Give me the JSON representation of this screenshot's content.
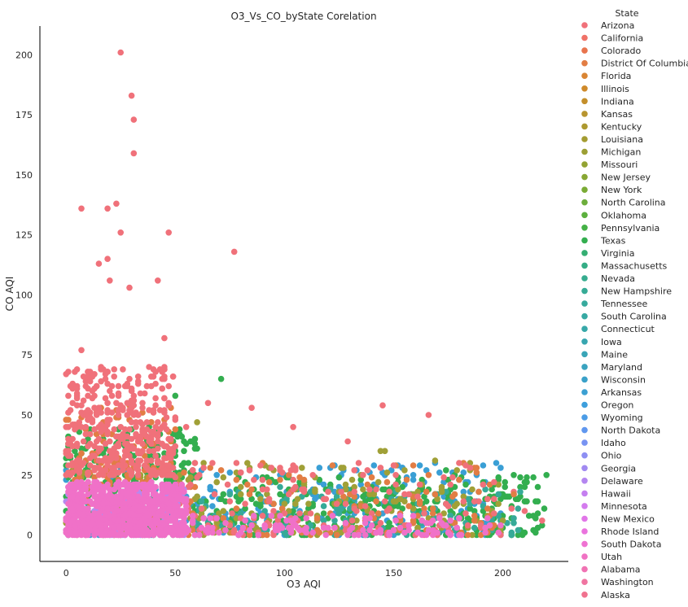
{
  "chart_data": {
    "type": "scatter",
    "title": "O3_Vs_CO_byState Corelation",
    "xlabel": "O3 AQI",
    "ylabel": "CO AQI",
    "xlim": [
      -12,
      230
    ],
    "ylim": [
      -11,
      212
    ],
    "xticks": [
      0,
      50,
      100,
      150,
      200
    ],
    "yticks": [
      0,
      25,
      50,
      75,
      100,
      125,
      150,
      175,
      200
    ],
    "grid": false,
    "legend": {
      "title": "State",
      "placement": "right-outside",
      "entries": [
        "Arizona",
        "California",
        "Colorado",
        "District Of Columbia",
        "Florida",
        "Illinois",
        "Indiana",
        "Kansas",
        "Kentucky",
        "Louisiana",
        "Michigan",
        "Missouri",
        "New Jersey",
        "New York",
        "North Carolina",
        "Oklahoma",
        "Pennsylvania",
        "Texas",
        "Virginia",
        "Massachusetts",
        "Nevada",
        "New Hampshire",
        "Tennessee",
        "South Carolina",
        "Connecticut",
        "Iowa",
        "Maine",
        "Maryland",
        "Wisconsin",
        "Arkansas",
        "Oregon",
        "Wyoming",
        "North Dakota",
        "Idaho",
        "Ohio",
        "Georgia",
        "Delaware",
        "Hawaii",
        "Minnesota",
        "New Mexico",
        "Rhode Island",
        "South Dakota",
        "Utah",
        "Alabama",
        "Washington",
        "Alaska"
      ]
    },
    "colors": {
      "red": "#f0717a",
      "orange": "#e27d44",
      "olive": "#a0a037",
      "green": "#33ae4f",
      "teal": "#36aa98",
      "blue": "#3a9fd5",
      "purple": "#b48af0",
      "pink": "#f071c8"
    },
    "series_color_keys": [
      "red",
      "red",
      "orange",
      "orange",
      "orange",
      "orange",
      "orange",
      "olive",
      "olive",
      "olive",
      "olive",
      "olive",
      "olive",
      "olive",
      "olive",
      "green",
      "green",
      "green",
      "green",
      "teal",
      "teal",
      "teal",
      "teal",
      "teal",
      "teal",
      "teal",
      "teal",
      "teal",
      "blue",
      "blue",
      "blue",
      "blue",
      "blue",
      "purple",
      "purple",
      "purple",
      "purple",
      "purple",
      "pink",
      "pink",
      "pink",
      "pink",
      "pink",
      "red",
      "red",
      "red"
    ],
    "clusters": [
      {
        "color": "blue",
        "x": [
          0,
          200
        ],
        "y": [
          0,
          30
        ],
        "n": 300
      },
      {
        "color": "green",
        "x": [
          0,
          220
        ],
        "y": [
          0,
          25
        ],
        "n": 450
      },
      {
        "color": "green",
        "x": [
          0,
          60
        ],
        "y": [
          20,
          45
        ],
        "n": 150
      },
      {
        "color": "teal",
        "x": [
          0,
          210
        ],
        "y": [
          0,
          20
        ],
        "n": 200
      },
      {
        "color": "olive",
        "x": [
          0,
          200
        ],
        "y": [
          0,
          30
        ],
        "n": 200
      },
      {
        "color": "orange",
        "x": [
          0,
          200
        ],
        "y": [
          0,
          30
        ],
        "n": 150
      },
      {
        "color": "orange",
        "x": [
          0,
          50
        ],
        "y": [
          20,
          55
        ],
        "n": 100
      },
      {
        "color": "red",
        "x": [
          0,
          50
        ],
        "y": [
          25,
          70
        ],
        "n": 400
      },
      {
        "color": "red",
        "x": [
          50,
          205
        ],
        "y": [
          0,
          30
        ],
        "n": 150
      },
      {
        "color": "purple",
        "x": [
          0,
          55
        ],
        "y": [
          0,
          20
        ],
        "n": 150
      },
      {
        "color": "pink",
        "x": [
          0,
          55
        ],
        "y": [
          0,
          22
        ],
        "n": 800
      },
      {
        "color": "pink",
        "x": [
          55,
          200
        ],
        "y": [
          0,
          8
        ],
        "n": 120
      }
    ],
    "points": [
      {
        "x": 25,
        "y": 201,
        "color": "red"
      },
      {
        "x": 30,
        "y": 183,
        "color": "red"
      },
      {
        "x": 31,
        "y": 173,
        "color": "red"
      },
      {
        "x": 31,
        "y": 159,
        "color": "red"
      },
      {
        "x": 7,
        "y": 136,
        "color": "red"
      },
      {
        "x": 19,
        "y": 136,
        "color": "red"
      },
      {
        "x": 23,
        "y": 138,
        "color": "red"
      },
      {
        "x": 25,
        "y": 126,
        "color": "red"
      },
      {
        "x": 47,
        "y": 126,
        "color": "red"
      },
      {
        "x": 77,
        "y": 118,
        "color": "red"
      },
      {
        "x": 15,
        "y": 113,
        "color": "red"
      },
      {
        "x": 19,
        "y": 115,
        "color": "red"
      },
      {
        "x": 42,
        "y": 106,
        "color": "red"
      },
      {
        "x": 20,
        "y": 106,
        "color": "red"
      },
      {
        "x": 29,
        "y": 103,
        "color": "red"
      },
      {
        "x": 7,
        "y": 77,
        "color": "red"
      },
      {
        "x": 45,
        "y": 82,
        "color": "red"
      },
      {
        "x": 71,
        "y": 65,
        "color": "green"
      },
      {
        "x": 65,
        "y": 55,
        "color": "red"
      },
      {
        "x": 85,
        "y": 53,
        "color": "red"
      },
      {
        "x": 145,
        "y": 54,
        "color": "red"
      },
      {
        "x": 166,
        "y": 50,
        "color": "red"
      },
      {
        "x": 104,
        "y": 45,
        "color": "red"
      },
      {
        "x": 129,
        "y": 39,
        "color": "red"
      },
      {
        "x": 169,
        "y": 31,
        "color": "olive"
      },
      {
        "x": 144,
        "y": 35,
        "color": "olive"
      },
      {
        "x": 146,
        "y": 35,
        "color": "olive"
      },
      {
        "x": 174,
        "y": 27,
        "color": "green"
      },
      {
        "x": 218,
        "y": 6,
        "color": "red"
      },
      {
        "x": 210,
        "y": 10,
        "color": "red"
      },
      {
        "x": 205,
        "y": 17,
        "color": "orange"
      },
      {
        "x": 55,
        "y": 45,
        "color": "red"
      },
      {
        "x": 60,
        "y": 47,
        "color": "olive"
      },
      {
        "x": 50,
        "y": 58,
        "color": "green"
      }
    ]
  }
}
